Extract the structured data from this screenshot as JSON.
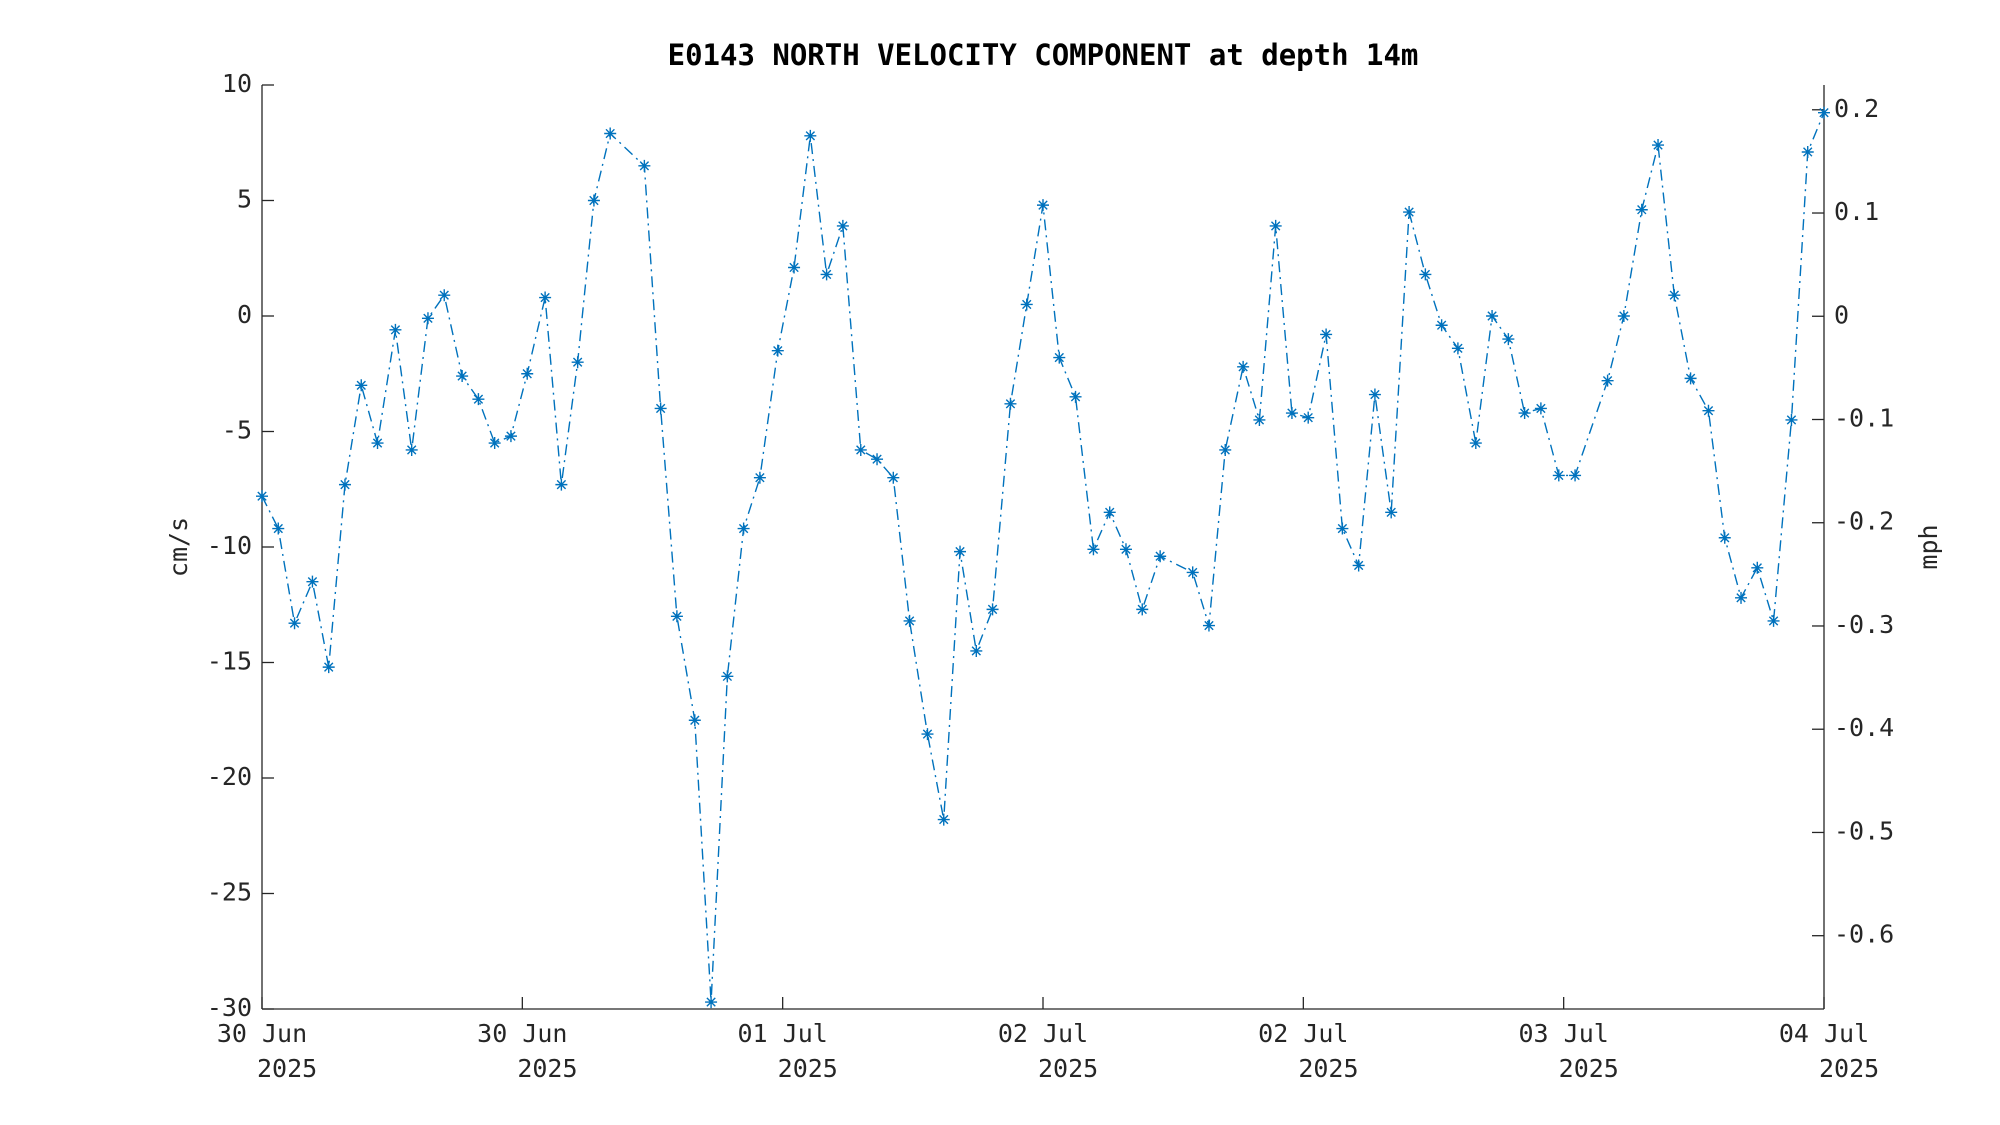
{
  "chart_data": {
    "type": "line",
    "title": "E0143 NORTH VELOCITY COMPONENT at depth 14m",
    "ylabel": "cm/s",
    "y2label": "mph",
    "ylim": [
      -30,
      10
    ],
    "yticks": [
      -30,
      -25,
      -20,
      -15,
      -10,
      -5,
      0,
      5,
      10
    ],
    "y2lim": [
      -0.671,
      0.224
    ],
    "y2ticks": [
      -0.6,
      -0.5,
      -0.4,
      -0.3,
      -0.2,
      -0.1,
      0,
      0.1,
      0.2
    ],
    "xlim": [
      0,
      96
    ],
    "xticks": [
      {
        "value": 0,
        "label": "30 Jun 2025"
      },
      {
        "value": 16,
        "label": "30 Jun 2025"
      },
      {
        "value": 32,
        "label": "01 Jul 2025"
      },
      {
        "value": 48,
        "label": "02 Jul 2025"
      },
      {
        "value": 64,
        "label": "02 Jul 2025"
      },
      {
        "value": 80,
        "label": "03 Jul 2025"
      },
      {
        "value": 96,
        "label": "04 Jul 2025"
      }
    ],
    "grid": false,
    "x": [
      0,
      1.0,
      2.0,
      3.1,
      4.1,
      5.1,
      6.1,
      7.1,
      8.2,
      9.2,
      10.2,
      11.2,
      12.3,
      13.3,
      14.3,
      15.3,
      16.3,
      17.4,
      18.4,
      19.4,
      20.4,
      21.4,
      23.5,
      24.5,
      25.5,
      26.6,
      27.6,
      28.6,
      29.6,
      30.6,
      31.7,
      32.7,
      33.7,
      34.7,
      35.7,
      36.8,
      37.8,
      38.8,
      39.8,
      40.9,
      41.9,
      42.9,
      43.9,
      44.9,
      46.0,
      47.0,
      48.0,
      49.0,
      50.0,
      51.1,
      52.1,
      53.1,
      54.1,
      55.2,
      57.2,
      58.2,
      59.2,
      60.3,
      61.3,
      62.3,
      63.3,
      64.3,
      65.4,
      66.4,
      67.4,
      68.4,
      69.4,
      70.5,
      71.5,
      72.5,
      73.5,
      74.6,
      75.6,
      76.6,
      77.6,
      78.6,
      79.7,
      80.7,
      82.7,
      83.7,
      84.8,
      85.8,
      86.8,
      87.8,
      88.9,
      89.9,
      90.9,
      91.9,
      92.9,
      94.0,
      95.0,
      96.0
    ],
    "series": [
      {
        "name": "North velocity",
        "color": "#0072bd",
        "values": [
          -7.8,
          -9.2,
          -13.3,
          -11.5,
          -15.2,
          -7.3,
          -3.0,
          -5.5,
          -0.6,
          -5.8,
          -0.1,
          0.9,
          -2.6,
          -3.6,
          -5.5,
          -5.2,
          -2.5,
          0.8,
          -7.3,
          -2.0,
          5.0,
          7.9,
          6.5,
          -4.0,
          -13.0,
          -17.5,
          -29.7,
          -15.6,
          -9.2,
          -7.0,
          -1.5,
          2.1,
          7.8,
          1.8,
          3.9,
          -5.8,
          -6.2,
          -7.0,
          -13.2,
          -18.1,
          -21.8,
          -10.2,
          -14.5,
          -12.7,
          -3.8,
          0.5,
          4.8,
          -1.8,
          -3.5,
          -10.1,
          -8.5,
          -10.1,
          -12.7,
          -10.4,
          -11.1,
          -13.4,
          -5.8,
          -2.2,
          -4.5,
          3.9,
          -4.2,
          -4.4,
          -0.8,
          -9.2,
          -10.8,
          -3.4,
          -8.5,
          4.5,
          1.8,
          -0.4,
          -1.4,
          -5.5,
          0.0,
          -1.0,
          -4.2,
          -4.0,
          -6.9,
          -6.9,
          -2.8,
          0.0,
          4.6,
          7.4,
          0.9,
          -2.7,
          -4.1,
          -9.6,
          -12.2,
          -10.9,
          -13.2,
          -4.5,
          7.1,
          8.8
        ]
      }
    ]
  }
}
